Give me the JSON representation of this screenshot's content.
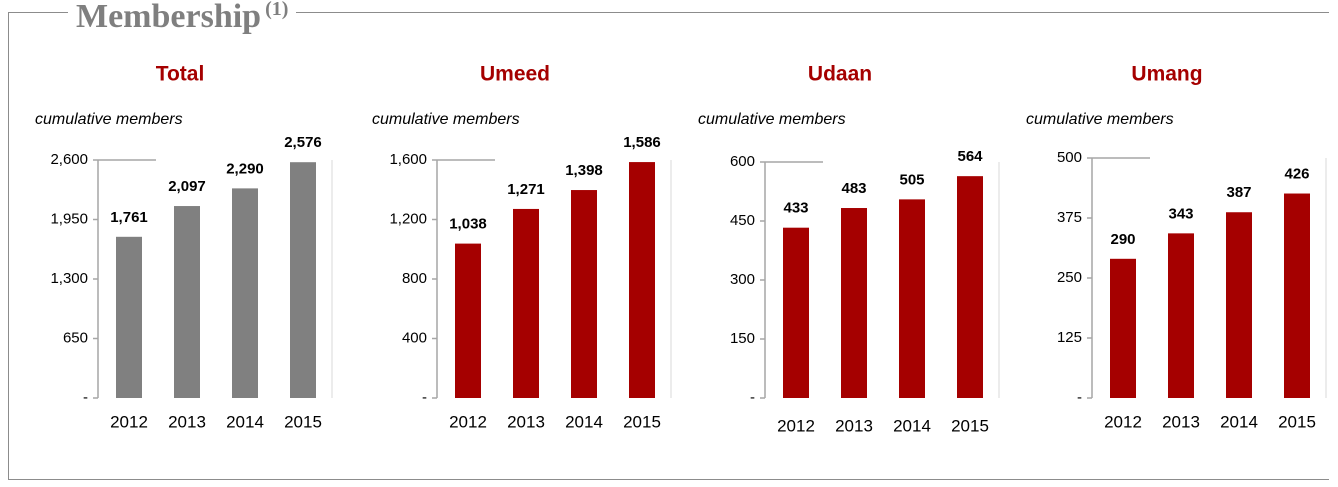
{
  "header": {
    "title": "Membership",
    "note": "(1)"
  },
  "chart_data": [
    {
      "type": "bar",
      "title": "Total",
      "subtitle": "cumulative members",
      "categories": [
        "2012",
        "2013",
        "2014",
        "2015"
      ],
      "values": [
        1761,
        2097,
        2290,
        2576
      ],
      "value_labels": [
        "1,761",
        "2,097",
        "2,290",
        "2,576"
      ],
      "color": "#808080",
      "ylim": [
        0,
        2600
      ],
      "yticks": [
        {
          "value": 0,
          "label": "-"
        },
        650,
        {
          "value": 1300,
          "label": "1,300"
        },
        {
          "value": 1950,
          "label": "1,950"
        },
        {
          "value": 2600,
          "label": "2,600"
        }
      ]
    },
    {
      "type": "bar",
      "title": "Umeed",
      "subtitle": "cumulative members",
      "categories": [
        "2012",
        "2013",
        "2014",
        "2015"
      ],
      "values": [
        1038,
        1271,
        1398,
        1586
      ],
      "value_labels": [
        "1,038",
        "1,271",
        "1,398",
        "1,586"
      ],
      "color": "#a50000",
      "ylim": [
        0,
        1600
      ],
      "yticks": [
        {
          "value": 0,
          "label": "-"
        },
        400,
        800,
        {
          "value": 1200,
          "label": "1,200"
        },
        {
          "value": 1600,
          "label": "1,600"
        }
      ]
    },
    {
      "type": "bar",
      "title": "Udaan",
      "subtitle": "cumulative members",
      "categories": [
        "2012",
        "2013",
        "2014",
        "2015"
      ],
      "values": [
        433,
        483,
        505,
        564
      ],
      "color": "#a50000",
      "ylim": [
        0,
        600
      ],
      "yticks": [
        {
          "value": 0,
          "label": "-"
        },
        150,
        300,
        450,
        600
      ]
    },
    {
      "type": "bar",
      "title": "Umang",
      "subtitle": "cumulative members",
      "categories": [
        "2012",
        "2013",
        "2014",
        "2015"
      ],
      "values": [
        290,
        343,
        387,
        426
      ],
      "color": "#a50000",
      "ylim": [
        0,
        500
      ],
      "yticks": [
        {
          "value": 0,
          "label": "-"
        },
        125,
        250,
        375,
        500
      ]
    }
  ]
}
